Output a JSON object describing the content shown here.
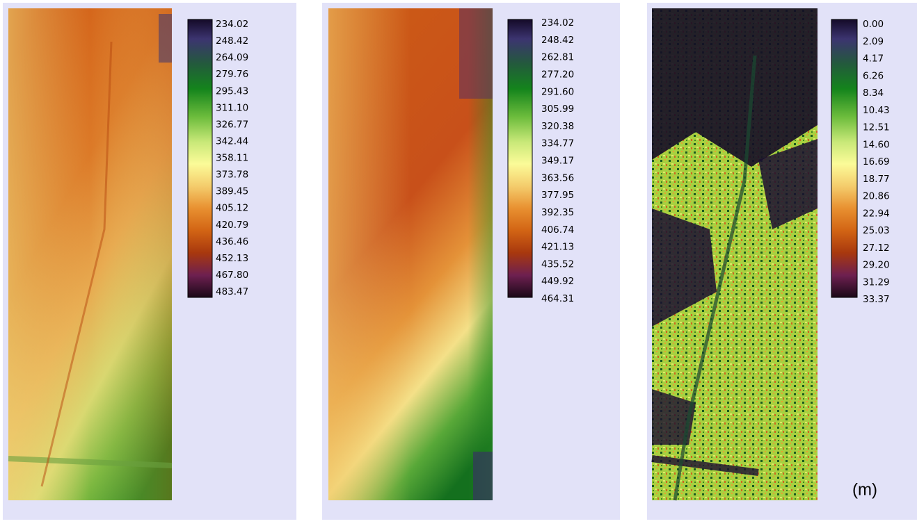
{
  "panels": [
    {
      "legend": [
        "234.02",
        "248.42",
        "264.09",
        "279.76",
        "295.43",
        "311.10",
        "326.77",
        "342.44",
        "358.11",
        "373.78",
        "389.45",
        "405.12",
        "420.79",
        "436.46",
        "452.13",
        "467.80",
        "483.47"
      ]
    },
    {
      "legend": [
        "234.02",
        "248.42",
        "262.81",
        "277.20",
        "291.60",
        "305.99",
        "320.38",
        "334.77",
        "349.17",
        "363.56",
        "377.95",
        "392.35",
        "406.74",
        "421.13",
        "435.52",
        "449.92",
        "464.31"
      ]
    },
    {
      "legend": [
        "0.00",
        "2.09",
        "4.17",
        "6.26",
        "8.34",
        "10.43",
        "12.51",
        "14.60",
        "16.69",
        "18.77",
        "20.86",
        "22.94",
        "25.03",
        "27.12",
        "29.20",
        "31.29",
        "33.37"
      ]
    }
  ],
  "unit_label": "(m)"
}
